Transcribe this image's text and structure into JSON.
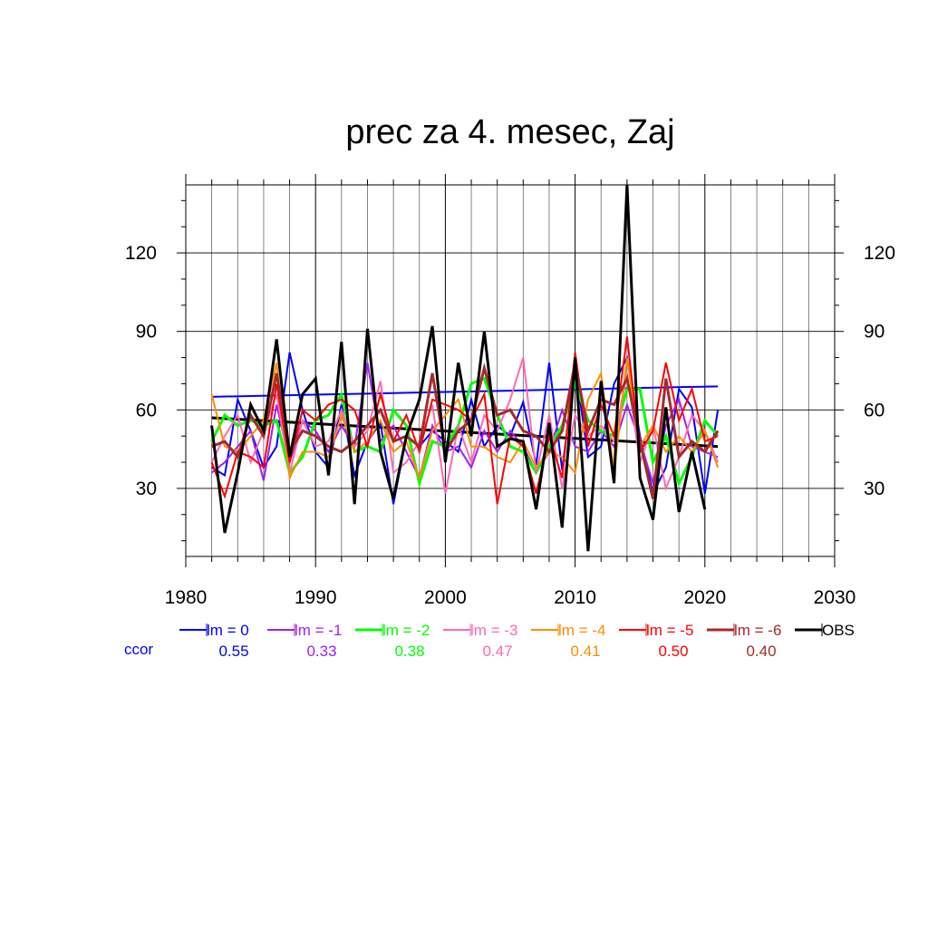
{
  "chart_data": {
    "type": "line",
    "title": "prec za 4. mesec, Zaj",
    "xlabel": "",
    "ylabel": "",
    "xlim": [
      1980,
      2030
    ],
    "ylim": [
      4,
      146
    ],
    "x_ticks": [
      "1980",
      "1990",
      "2000",
      "2010",
      "2020",
      "2030"
    ],
    "y_ticks": [
      "30",
      "60",
      "90",
      "120"
    ],
    "grid": true,
    "legend_position": "bottom",
    "ccor_label": "ccor",
    "x": [
      1982,
      1983,
      1984,
      1985,
      1986,
      1987,
      1988,
      1989,
      1990,
      1991,
      1992,
      1993,
      1994,
      1995,
      1996,
      1997,
      1998,
      1999,
      2000,
      2001,
      2002,
      2003,
      2004,
      2005,
      2006,
      2007,
      2008,
      2009,
      2010,
      2011,
      2012,
      2013,
      2014,
      2015,
      2016,
      2017,
      2018,
      2019,
      2020,
      2021
    ],
    "series": [
      {
        "name": "lm = 0",
        "ccor": "0.55",
        "color": "#0000ff",
        "width": 2,
        "values": [
          38,
          35,
          64,
          52,
          38,
          46,
          82,
          60,
          44,
          38,
          62,
          35,
          48,
          55,
          24,
          50,
          46,
          52,
          48,
          44,
          64,
          46,
          54,
          50,
          63,
          39,
          78,
          37,
          77,
          42,
          46,
          70,
          80,
          50,
          28,
          38,
          68,
          61,
          28,
          60
        ],
        "trend": [
          65,
          69
        ]
      },
      {
        "name": "lm = -1",
        "ccor": "0.33",
        "color": "#a020f0",
        "width": 2,
        "values": [
          36,
          40,
          46,
          52,
          33,
          62,
          40,
          56,
          52,
          44,
          54,
          46,
          78,
          48,
          54,
          44,
          34,
          54,
          44,
          46,
          38,
          52,
          44,
          52,
          46,
          36,
          44,
          60,
          46,
          44,
          52,
          46,
          62,
          48,
          32,
          54,
          64,
          46,
          44,
          42
        ]
      },
      {
        "name": "lm = -2",
        "ccor": "0.38",
        "color": "#00ff00",
        "width": 3,
        "values": [
          48,
          58,
          54,
          56,
          54,
          56,
          36,
          42,
          56,
          58,
          66,
          44,
          46,
          44,
          60,
          54,
          32,
          48,
          46,
          54,
          70,
          72,
          58,
          46,
          44,
          36,
          46,
          54,
          70,
          56,
          52,
          50,
          68,
          68,
          40,
          50,
          32,
          42,
          56,
          50
        ]
      },
      {
        "name": "lm = -3",
        "ccor": "0.47",
        "color": "#ff69b4",
        "width": 2,
        "values": [
          40,
          50,
          58,
          40,
          52,
          66,
          36,
          56,
          46,
          48,
          60,
          46,
          52,
          71,
          36,
          40,
          48,
          62,
          28,
          54,
          40,
          58,
          52,
          64,
          80,
          36,
          58,
          30,
          58,
          50,
          54,
          48,
          74,
          40,
          54,
          30,
          42,
          58,
          52,
          40
        ]
      },
      {
        "name": "lm = -4",
        "ccor": "0.41",
        "color": "#ff8c00",
        "width": 2,
        "values": [
          66,
          46,
          44,
          50,
          56,
          78,
          34,
          44,
          44,
          42,
          58,
          44,
          48,
          56,
          44,
          48,
          34,
          52,
          58,
          64,
          46,
          46,
          42,
          40,
          48,
          38,
          44,
          42,
          36,
          64,
          74,
          36,
          80,
          46,
          54,
          44,
          50,
          44,
          52,
          38
        ]
      },
      {
        "name": "lm = -5",
        "ccor": "0.50",
        "color": "#ff0000",
        "width": 2,
        "values": [
          40,
          27,
          44,
          42,
          38,
          70,
          40,
          60,
          56,
          62,
          64,
          60,
          46,
          66,
          48,
          58,
          44,
          64,
          62,
          60,
          56,
          66,
          24,
          50,
          46,
          28,
          50,
          34,
          82,
          46,
          62,
          50,
          88,
          44,
          52,
          78,
          56,
          68,
          48,
          50
        ]
      },
      {
        "name": "lm = -6",
        "ccor": "0.40",
        "color": "#a52a2a",
        "width": 3,
        "values": [
          46,
          48,
          42,
          58,
          50,
          74,
          44,
          52,
          50,
          46,
          44,
          48,
          54,
          60,
          48,
          50,
          46,
          74,
          44,
          52,
          56,
          76,
          58,
          60,
          52,
          50,
          44,
          52,
          78,
          52,
          64,
          62,
          72,
          48,
          26,
          72,
          42,
          48,
          44,
          52
        ]
      },
      {
        "name": "OBS",
        "ccor": "",
        "color": "#000000",
        "width": 3,
        "values": [
          54,
          13,
          36,
          62,
          52,
          87,
          42,
          66,
          72,
          35,
          86,
          24,
          91,
          44,
          26,
          50,
          64,
          92,
          40,
          78,
          50,
          90,
          46,
          49,
          48,
          22,
          55,
          15,
          80,
          6,
          71,
          32,
          146,
          34,
          18,
          61,
          21,
          44,
          22,
          null
        ],
        "trend": [
          57,
          46
        ]
      }
    ]
  }
}
